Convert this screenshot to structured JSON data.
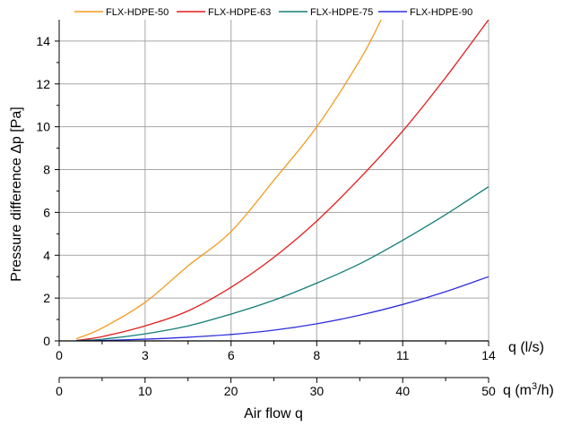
{
  "chart_data": {
    "type": "line",
    "ylabel": "Pressure difference Δp [Pa]",
    "xlabel": "Air flow q",
    "x_unit_primary": "q (l/s)",
    "x_unit_secondary_prefix": "q (m",
    "x_unit_secondary_sup": "3",
    "x_unit_secondary_suffix": "/h)",
    "xlim_ls": [
      0,
      14
    ],
    "xticks_ls": [
      "0",
      "3",
      "6",
      "8",
      "11",
      "14"
    ],
    "xticks_ls_values": [
      0,
      2.78,
      5.56,
      8.33,
      11.11,
      13.89
    ],
    "xlim_m3h": [
      0,
      50
    ],
    "xticks_m3h": [
      "0",
      "10",
      "20",
      "30",
      "40",
      "50"
    ],
    "xticks_m3h_values": [
      0,
      10,
      20,
      30,
      40,
      50
    ],
    "ylim": [
      0,
      15
    ],
    "yticks": [
      "0",
      "2",
      "4",
      "6",
      "8",
      "10",
      "12",
      "14"
    ],
    "grid": true,
    "legend_position": "top",
    "x_m3h": [
      2,
      5,
      10,
      15,
      20,
      25,
      30,
      35,
      37,
      40,
      45,
      50
    ],
    "series": [
      {
        "name": "FLX-HDPE-50",
        "color": "#f39a1f",
        "x": [
          2,
          5,
          10,
          15,
          20,
          25,
          30,
          35,
          37.5
        ],
        "values": [
          0.1,
          0.6,
          1.8,
          3.5,
          5.1,
          7.5,
          10.0,
          13.1,
          15.0
        ]
      },
      {
        "name": "FLX-HDPE-63",
        "color": "#e41c1c",
        "x": [
          2,
          5,
          10,
          15,
          20,
          25,
          30,
          35,
          40,
          45,
          50
        ],
        "values": [
          0.02,
          0.2,
          0.7,
          1.4,
          2.5,
          3.9,
          5.6,
          7.6,
          9.8,
          12.3,
          15.0
        ]
      },
      {
        "name": "FLX-HDPE-75",
        "color": "#137e78",
        "x": [
          2,
          5,
          10,
          15,
          20,
          25,
          30,
          35,
          40,
          45,
          50
        ],
        "values": [
          0.01,
          0.08,
          0.33,
          0.7,
          1.25,
          1.9,
          2.7,
          3.6,
          4.7,
          5.9,
          7.2
        ]
      },
      {
        "name": "FLX-HDPE-90",
        "color": "#2d2fdc",
        "x": [
          2,
          5,
          10,
          15,
          20,
          25,
          30,
          35,
          40,
          45,
          50
        ],
        "values": [
          0.0,
          0.02,
          0.08,
          0.17,
          0.3,
          0.5,
          0.8,
          1.2,
          1.7,
          2.3,
          3.0
        ]
      }
    ]
  }
}
